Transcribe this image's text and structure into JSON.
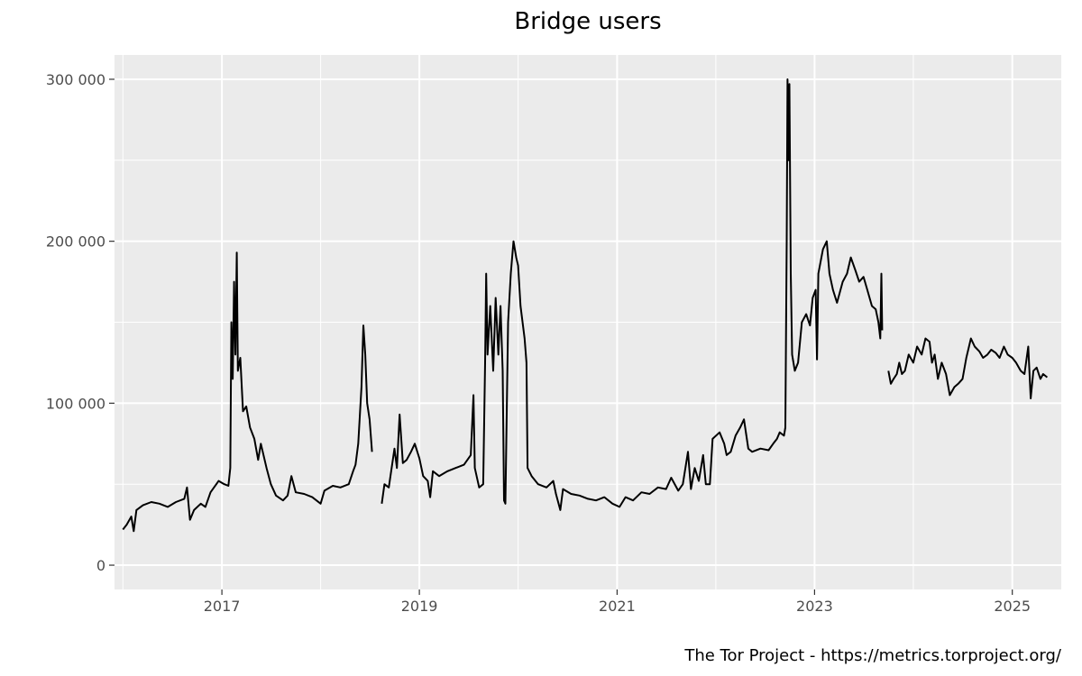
{
  "chart_data": {
    "type": "line",
    "title": "Bridge users",
    "xlabel": "",
    "ylabel": "",
    "grid": true,
    "legend": "none",
    "x_range": [
      "2015-12-01",
      "2025-07-01"
    ],
    "y_range": [
      -15000,
      315000
    ],
    "y_ticks": [
      {
        "value": 0,
        "label": "0"
      },
      {
        "value": 100000,
        "label": "100 000"
      },
      {
        "value": 200000,
        "label": "200 000"
      },
      {
        "value": 300000,
        "label": "300 000"
      }
    ],
    "x_ticks": [
      {
        "value": "2017-01-01",
        "label": "2017"
      },
      {
        "value": "2019-01-01",
        "label": "2019"
      },
      {
        "value": "2021-01-01",
        "label": "2021"
      },
      {
        "value": "2023-01-01",
        "label": "2023"
      },
      {
        "value": "2025-01-01",
        "label": "2025"
      }
    ],
    "x_minor_ticks": [
      "2016-01-01",
      "2018-01-01",
      "2020-01-01",
      "2022-01-01",
      "2024-01-01"
    ],
    "line_color": "#000000",
    "panel_color": "#ebebeb",
    "grid_color": "#ffffff",
    "series": [
      {
        "segments": [
          [
            [
              "2016-01-01",
              22000
            ],
            [
              "2016-01-15",
              25000
            ],
            [
              "2016-02-01",
              30000
            ],
            [
              "2016-02-10",
              21000
            ],
            [
              "2016-02-20",
              34000
            ],
            [
              "2016-03-15",
              37000
            ],
            [
              "2016-04-15",
              39000
            ],
            [
              "2016-05-15",
              38000
            ],
            [
              "2016-06-15",
              36000
            ],
            [
              "2016-07-15",
              39000
            ],
            [
              "2016-08-15",
              41000
            ],
            [
              "2016-08-25",
              48000
            ],
            [
              "2016-09-05",
              28000
            ],
            [
              "2016-09-20",
              34000
            ],
            [
              "2016-10-15",
              38000
            ],
            [
              "2016-11-01",
              36000
            ],
            [
              "2016-11-20",
              45000
            ],
            [
              "2016-12-20",
              52000
            ],
            [
              "2017-01-10",
              50000
            ],
            [
              "2017-01-25",
              49000
            ],
            [
              "2017-02-01",
              60000
            ],
            [
              "2017-02-05",
              150000
            ],
            [
              "2017-02-10",
              115000
            ],
            [
              "2017-02-15",
              175000
            ],
            [
              "2017-02-20",
              130000
            ],
            [
              "2017-02-25",
              193000
            ],
            [
              "2017-03-01",
              120000
            ],
            [
              "2017-03-10",
              128000
            ],
            [
              "2017-03-20",
              95000
            ],
            [
              "2017-04-01",
              98000
            ],
            [
              "2017-04-15",
              85000
            ],
            [
              "2017-05-01",
              78000
            ],
            [
              "2017-05-15",
              65000
            ],
            [
              "2017-05-25",
              75000
            ],
            [
              "2017-06-15",
              60000
            ],
            [
              "2017-07-01",
              50000
            ],
            [
              "2017-07-20",
              43000
            ],
            [
              "2017-08-15",
              40000
            ],
            [
              "2017-09-01",
              43000
            ],
            [
              "2017-09-15",
              55000
            ],
            [
              "2017-10-01",
              45000
            ],
            [
              "2017-11-01",
              44000
            ],
            [
              "2017-12-01",
              42000
            ],
            [
              "2018-01-01",
              38000
            ],
            [
              "2018-01-15",
              46000
            ],
            [
              "2018-02-15",
              49000
            ],
            [
              "2018-03-15",
              48000
            ],
            [
              "2018-04-15",
              50000
            ],
            [
              "2018-05-01",
              58000
            ],
            [
              "2018-05-10",
              62000
            ],
            [
              "2018-05-20",
              75000
            ],
            [
              "2018-06-01",
              110000
            ],
            [
              "2018-06-08",
              148000
            ],
            [
              "2018-06-15",
              130000
            ],
            [
              "2018-06-22",
              100000
            ],
            [
              "2018-07-01",
              90000
            ],
            [
              "2018-07-10",
              70000
            ]
          ],
          [
            [
              "2018-08-15",
              38000
            ],
            [
              "2018-08-25",
              50000
            ],
            [
              "2018-09-10",
              48000
            ],
            [
              "2018-10-01",
              72000
            ],
            [
              "2018-10-10",
              60000
            ],
            [
              "2018-10-20",
              93000
            ],
            [
              "2018-11-01",
              63000
            ],
            [
              "2018-11-15",
              65000
            ],
            [
              "2018-12-01",
              70000
            ],
            [
              "2018-12-15",
              75000
            ],
            [
              "2019-01-01",
              66000
            ],
            [
              "2019-01-15",
              55000
            ],
            [
              "2019-02-01",
              52000
            ],
            [
              "2019-02-10",
              42000
            ],
            [
              "2019-02-20",
              58000
            ],
            [
              "2019-03-15",
              55000
            ],
            [
              "2019-04-15",
              58000
            ],
            [
              "2019-05-15",
              60000
            ],
            [
              "2019-06-15",
              62000
            ],
            [
              "2019-07-10",
              68000
            ],
            [
              "2019-07-20",
              105000
            ],
            [
              "2019-07-25",
              60000
            ],
            [
              "2019-08-10",
              48000
            ],
            [
              "2019-08-25",
              50000
            ],
            [
              "2019-09-01",
              125000
            ],
            [
              "2019-09-05",
              180000
            ],
            [
              "2019-09-10",
              130000
            ],
            [
              "2019-09-20",
              160000
            ],
            [
              "2019-10-01",
              120000
            ],
            [
              "2019-10-10",
              165000
            ],
            [
              "2019-10-20",
              130000
            ],
            [
              "2019-10-28",
              160000
            ],
            [
              "2019-11-05",
              120000
            ],
            [
              "2019-11-10",
              40000
            ],
            [
              "2019-11-15",
              38000
            ],
            [
              "2019-11-25",
              150000
            ],
            [
              "2019-12-05",
              180000
            ],
            [
              "2019-12-15",
              200000
            ],
            [
              "2019-12-25",
              190000
            ],
            [
              "2020-01-01",
              185000
            ],
            [
              "2020-01-10",
              160000
            ],
            [
              "2020-01-25",
              140000
            ],
            [
              "2020-02-01",
              125000
            ],
            [
              "2020-02-05",
              60000
            ],
            [
              "2020-02-20",
              55000
            ],
            [
              "2020-03-15",
              50000
            ],
            [
              "2020-04-15",
              48000
            ],
            [
              "2020-05-10",
              52000
            ],
            [
              "2020-05-20",
              44000
            ],
            [
              "2020-06-05",
              34000
            ],
            [
              "2020-06-15",
              47000
            ],
            [
              "2020-07-15",
              44000
            ],
            [
              "2020-08-15",
              43000
            ],
            [
              "2020-09-15",
              41000
            ],
            [
              "2020-10-15",
              40000
            ],
            [
              "2020-11-15",
              42000
            ],
            [
              "2020-12-15",
              38000
            ],
            [
              "2021-01-10",
              36000
            ],
            [
              "2021-02-01",
              42000
            ],
            [
              "2021-03-01",
              40000
            ],
            [
              "2021-04-01",
              45000
            ],
            [
              "2021-05-01",
              44000
            ],
            [
              "2021-06-01",
              48000
            ],
            [
              "2021-07-01",
              47000
            ],
            [
              "2021-07-20",
              54000
            ],
            [
              "2021-08-15",
              46000
            ],
            [
              "2021-09-01",
              50000
            ],
            [
              "2021-09-20",
              70000
            ],
            [
              "2021-10-01",
              47000
            ],
            [
              "2021-10-15",
              60000
            ],
            [
              "2021-10-30",
              52000
            ],
            [
              "2021-11-15",
              68000
            ],
            [
              "2021-11-25",
              50000
            ],
            [
              "2021-12-10",
              50000
            ],
            [
              "2021-12-20",
              78000
            ],
            [
              "2022-01-15",
              82000
            ],
            [
              "2022-02-01",
              75000
            ],
            [
              "2022-02-10",
              68000
            ],
            [
              "2022-02-25",
              70000
            ],
            [
              "2022-03-15",
              80000
            ],
            [
              "2022-04-01",
              85000
            ],
            [
              "2022-04-15",
              90000
            ],
            [
              "2022-05-01",
              72000
            ],
            [
              "2022-05-15",
              70000
            ],
            [
              "2022-06-15",
              72000
            ],
            [
              "2022-07-15",
              71000
            ],
            [
              "2022-08-01",
              75000
            ],
            [
              "2022-08-15",
              78000
            ],
            [
              "2022-08-25",
              82000
            ],
            [
              "2022-09-10",
              80000
            ],
            [
              "2022-09-15",
              85000
            ],
            [
              "2022-09-20",
              200000
            ],
            [
              "2022-09-23",
              300000
            ],
            [
              "2022-09-26",
              250000
            ],
            [
              "2022-09-30",
              297000
            ],
            [
              "2022-10-05",
              180000
            ],
            [
              "2022-10-10",
              130000
            ],
            [
              "2022-10-20",
              120000
            ],
            [
              "2022-11-01",
              125000
            ],
            [
              "2022-11-15",
              150000
            ],
            [
              "2022-12-01",
              155000
            ],
            [
              "2022-12-15",
              148000
            ],
            [
              "2022-12-25",
              165000
            ],
            [
              "2023-01-05",
              170000
            ],
            [
              "2023-01-10",
              127000
            ],
            [
              "2023-01-15",
              180000
            ],
            [
              "2023-02-01",
              195000
            ],
            [
              "2023-02-15",
              200000
            ],
            [
              "2023-02-25",
              180000
            ],
            [
              "2023-03-10",
              170000
            ],
            [
              "2023-03-25",
              162000
            ],
            [
              "2023-04-15",
              175000
            ],
            [
              "2023-05-01",
              180000
            ],
            [
              "2023-05-15",
              190000
            ],
            [
              "2023-06-01",
              182000
            ],
            [
              "2023-06-15",
              175000
            ],
            [
              "2023-07-01",
              178000
            ],
            [
              "2023-07-15",
              170000
            ],
            [
              "2023-08-01",
              160000
            ],
            [
              "2023-08-15",
              158000
            ],
            [
              "2023-08-25",
              150000
            ],
            [
              "2023-09-01",
              140000
            ],
            [
              "2023-09-05",
              180000
            ],
            [
              "2023-09-08",
              145000
            ]
          ],
          [
            [
              "2023-10-01",
              120000
            ],
            [
              "2023-10-10",
              112000
            ],
            [
              "2023-10-20",
              115000
            ],
            [
              "2023-11-01",
              118000
            ],
            [
              "2023-11-10",
              125000
            ],
            [
              "2023-11-20",
              118000
            ],
            [
              "2023-12-01",
              120000
            ],
            [
              "2023-12-15",
              130000
            ],
            [
              "2024-01-01",
              125000
            ],
            [
              "2024-01-15",
              135000
            ],
            [
              "2024-02-01",
              130000
            ],
            [
              "2024-02-15",
              140000
            ],
            [
              "2024-03-01",
              138000
            ],
            [
              "2024-03-10",
              125000
            ],
            [
              "2024-03-20",
              130000
            ],
            [
              "2024-04-01",
              115000
            ],
            [
              "2024-04-15",
              125000
            ],
            [
              "2024-05-01",
              118000
            ],
            [
              "2024-05-15",
              105000
            ],
            [
              "2024-06-01",
              110000
            ],
            [
              "2024-06-15",
              112000
            ],
            [
              "2024-07-01",
              115000
            ],
            [
              "2024-07-15",
              128000
            ],
            [
              "2024-08-01",
              140000
            ],
            [
              "2024-08-15",
              135000
            ],
            [
              "2024-09-01",
              132000
            ],
            [
              "2024-09-15",
              128000
            ],
            [
              "2024-10-01",
              130000
            ],
            [
              "2024-10-15",
              133000
            ],
            [
              "2024-11-01",
              131000
            ],
            [
              "2024-11-15",
              128000
            ],
            [
              "2024-12-01",
              135000
            ],
            [
              "2024-12-15",
              130000
            ],
            [
              "2025-01-01",
              128000
            ],
            [
              "2025-01-15",
              125000
            ],
            [
              "2025-02-01",
              120000
            ],
            [
              "2025-02-15",
              118000
            ],
            [
              "2025-03-01",
              135000
            ],
            [
              "2025-03-10",
              103000
            ],
            [
              "2025-03-20",
              120000
            ],
            [
              "2025-04-01",
              122000
            ],
            [
              "2025-04-15",
              115000
            ],
            [
              "2025-04-25",
              118000
            ],
            [
              "2025-05-10",
              116000
            ]
          ]
        ]
      }
    ]
  },
  "footer": {
    "credit": "The Tor Project - https://metrics.torproject.org/"
  }
}
